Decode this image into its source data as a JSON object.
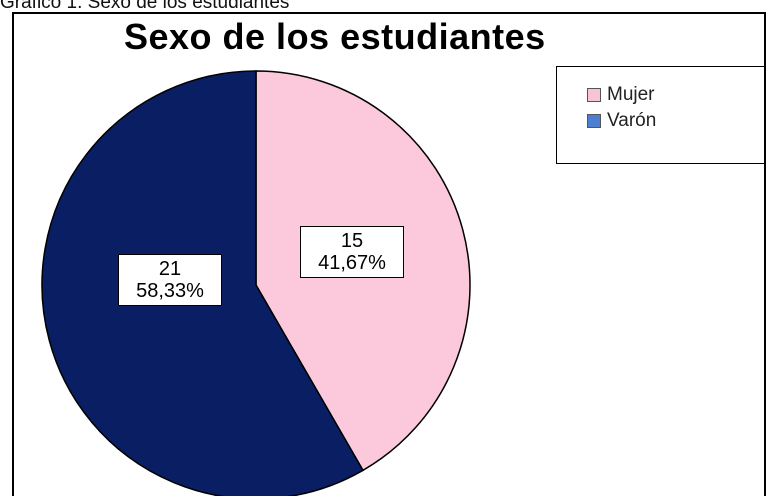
{
  "caption": "Gráfico 1. Sexo de los estudiantes",
  "chart_data": {
    "type": "pie",
    "title": "Sexo de los estudiantes",
    "slices": [
      {
        "name": "Mujer",
        "value": 15,
        "percent_label": "41,67%",
        "color": "#fcc8dc"
      },
      {
        "name": "Varón",
        "value": 21,
        "percent_label": "58,33%",
        "color": "#0a1f63"
      }
    ],
    "legend_position": "top-right",
    "legend_swatch_colors": [
      "#f7c3d6",
      "#4d7fd0"
    ]
  }
}
